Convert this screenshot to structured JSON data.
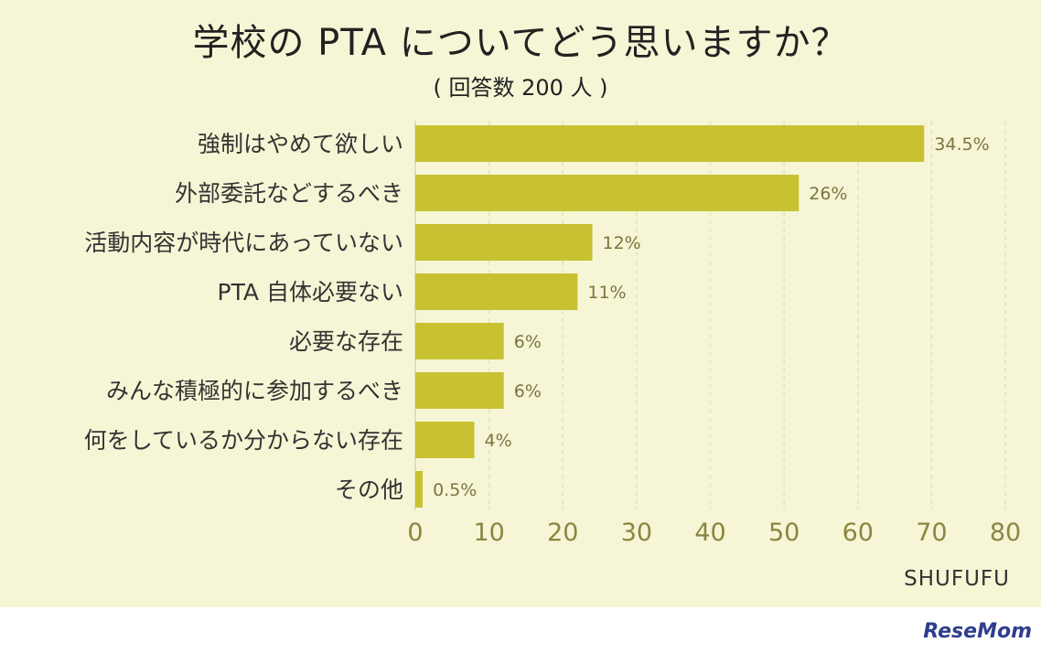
{
  "header": {
    "title": "学校の PTA についてどう思いますか？",
    "subtitle": "( 回答数 200 人 )"
  },
  "footer": {
    "source": "SHUFUFU",
    "logo": "ReseMom"
  },
  "colors": {
    "background": "#f6f6d6",
    "bar": "#c8c232",
    "axis_tick": "#8a8640",
    "value_label": "#7a7640",
    "category_label": "#333333"
  },
  "chart_data": {
    "type": "bar",
    "orientation": "horizontal",
    "categories": [
      "強制はやめて欲しい",
      "外部委託などするべき",
      "活動内容が時代にあっていない",
      "PTA 自体必要ない",
      "必要な存在",
      "みんな積極的に参加するべき",
      "何をしているか分からない存在",
      "その他"
    ],
    "values": [
      69,
      52,
      24,
      22,
      12,
      12,
      8,
      1
    ],
    "value_labels": [
      "34.5%",
      "26%",
      "12%",
      "11%",
      "6%",
      "6%",
      "4%",
      "0.5%"
    ],
    "xlim": [
      0,
      80
    ],
    "xticks": [
      0,
      10,
      20,
      30,
      40,
      50,
      60,
      70,
      80
    ],
    "grid": "vertical dashed"
  }
}
